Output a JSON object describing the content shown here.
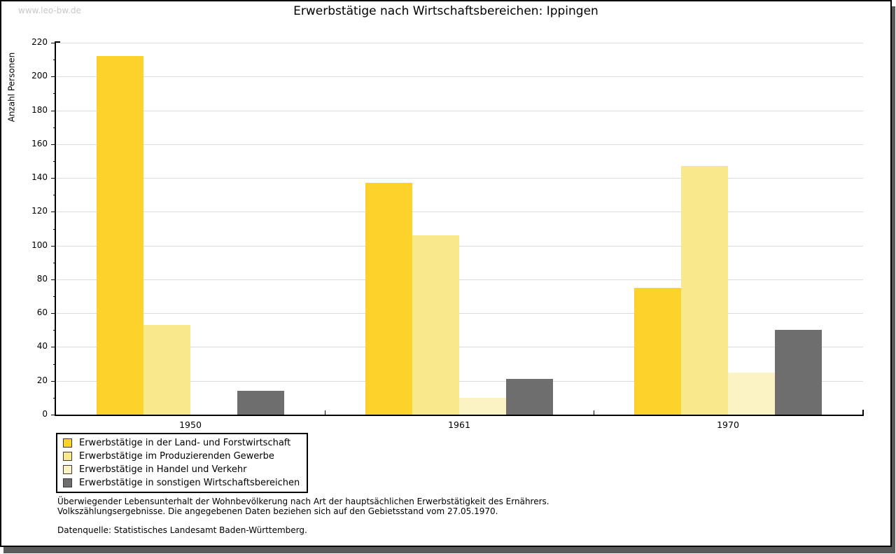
{
  "watermark": "www.leo-bw.de",
  "title": "Erwerbstätige nach Wirtschaftsbereichen: Ippingen",
  "chart_data": {
    "type": "bar",
    "title": "Erwerbstätige nach Wirtschaftsbereichen: Ippingen",
    "xlabel": "",
    "ylabel": "Anzahl Personen",
    "categories": [
      "1950",
      "1961",
      "1970"
    ],
    "series": [
      {
        "name": "Erwerbstätige in der Land- und Forstwirtschaft",
        "color": "#FCD22B",
        "values": [
          212,
          137,
          75
        ]
      },
      {
        "name": "Erwerbstätige im Produzierenden Gewerbe",
        "color": "#FAE88C",
        "values": [
          53,
          106,
          147
        ]
      },
      {
        "name": "Erwerbstätige in Handel und Verkehr",
        "color": "#FCF3C4",
        "values": [
          0,
          10,
          25
        ]
      },
      {
        "name": "Erwerbstätige in sonstigen Wirtschaftsbereichen",
        "color": "#6E6E6E",
        "values": [
          14,
          21,
          50
        ]
      }
    ],
    "ylim": [
      0,
      220
    ],
    "ytick_step": 20,
    "yminor_step": 10,
    "grid": true,
    "gridline_color": "#DCDCDC",
    "legend_position": "bottom-left"
  },
  "notes": {
    "line1": "Überwiegender Lebensunterhalt der Wohnbevölkerung nach Art der hauptsächlichen Erwerbstätigkeit des Ernährers.",
    "line2": "Volkszählungsergebnisse. Die angegebenen Daten beziehen sich auf den Gebietsstand vom 27.05.1970.",
    "source": "Datenquelle: Statistisches Landesamt Baden-Württemberg."
  }
}
